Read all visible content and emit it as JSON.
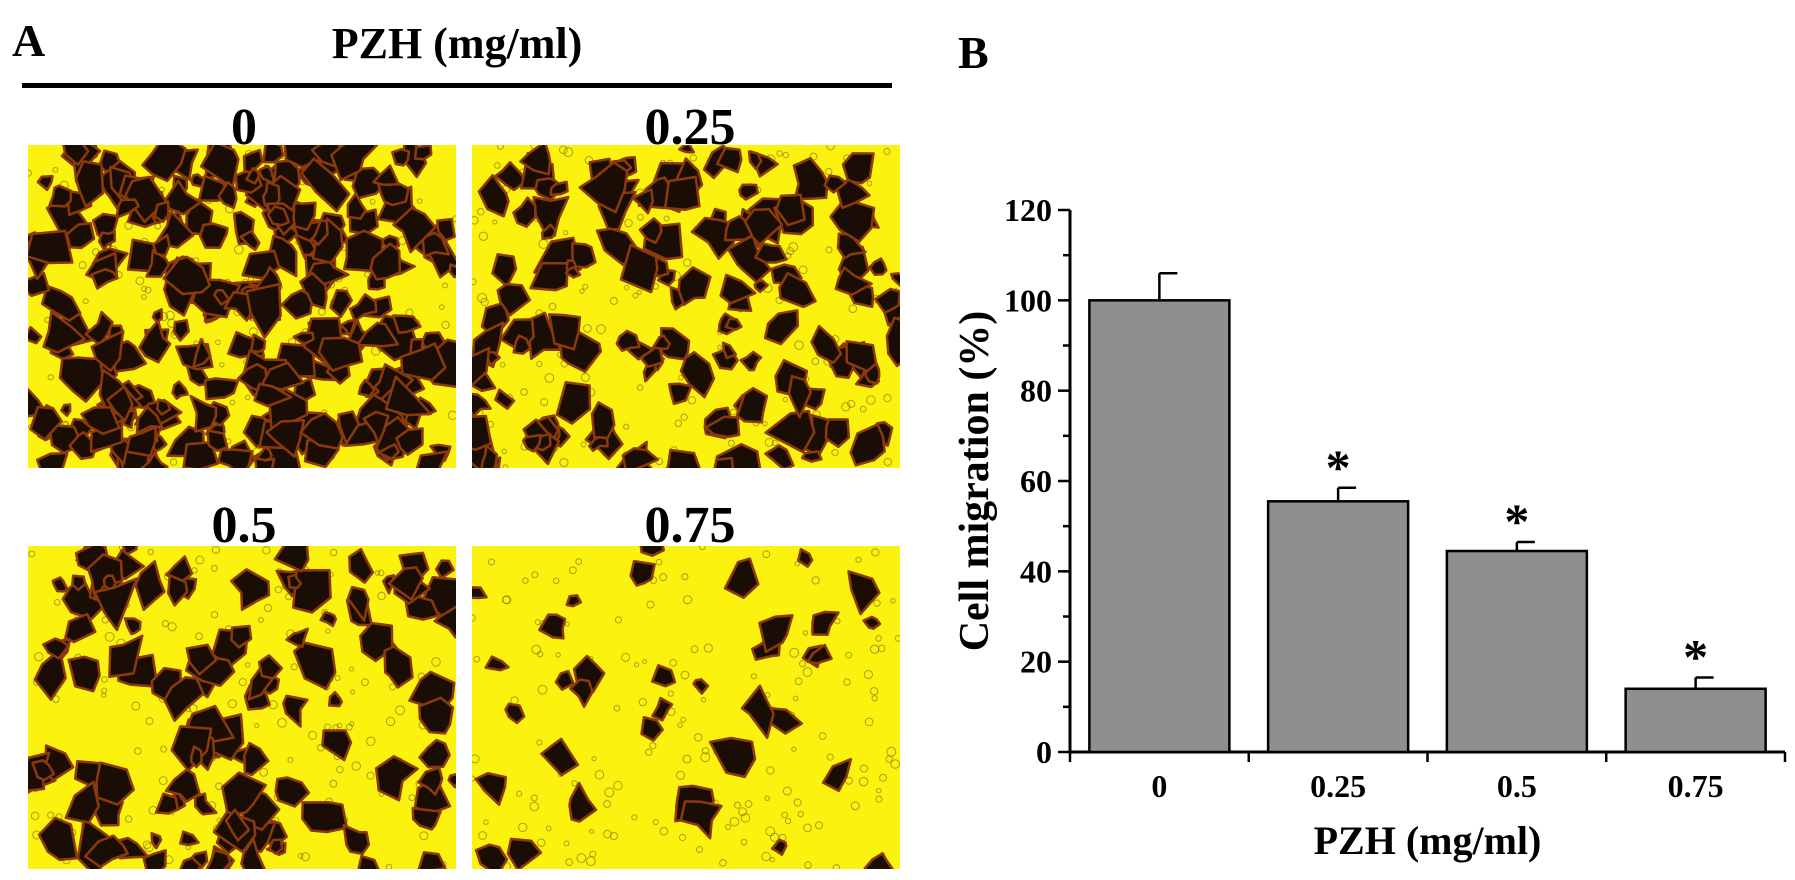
{
  "panel_a": {
    "letter": "A",
    "title": "PZH (mg/ml)",
    "images": [
      {
        "label": "0",
        "density": 1.0
      },
      {
        "label": "0.25",
        "density": 0.55
      },
      {
        "label": "0.5",
        "density": 0.45
      },
      {
        "label": "0.75",
        "density": 0.14
      }
    ]
  },
  "panel_b": {
    "letter": "B"
  },
  "colors": {
    "field": "#fbf20f",
    "cell": "#1a0d05",
    "cell_edge": "#8a3a0c",
    "bar": "#8e9090"
  },
  "chart_data": {
    "type": "bar",
    "categories": [
      "0",
      "0.25",
      "0.5",
      "0.75"
    ],
    "values": [
      100,
      55.5,
      44.5,
      14
    ],
    "errors": [
      6,
      3,
      2,
      2.5
    ],
    "significance": [
      "",
      "*",
      "*",
      "*"
    ],
    "xlabel": "PZH (mg/ml)",
    "ylabel": "Cell migration (%)",
    "ylim": [
      0,
      120
    ],
    "yticks": [
      "0",
      "20",
      "40",
      "60",
      "80",
      "100",
      "120"
    ],
    "grid": false,
    "legend": "none"
  }
}
